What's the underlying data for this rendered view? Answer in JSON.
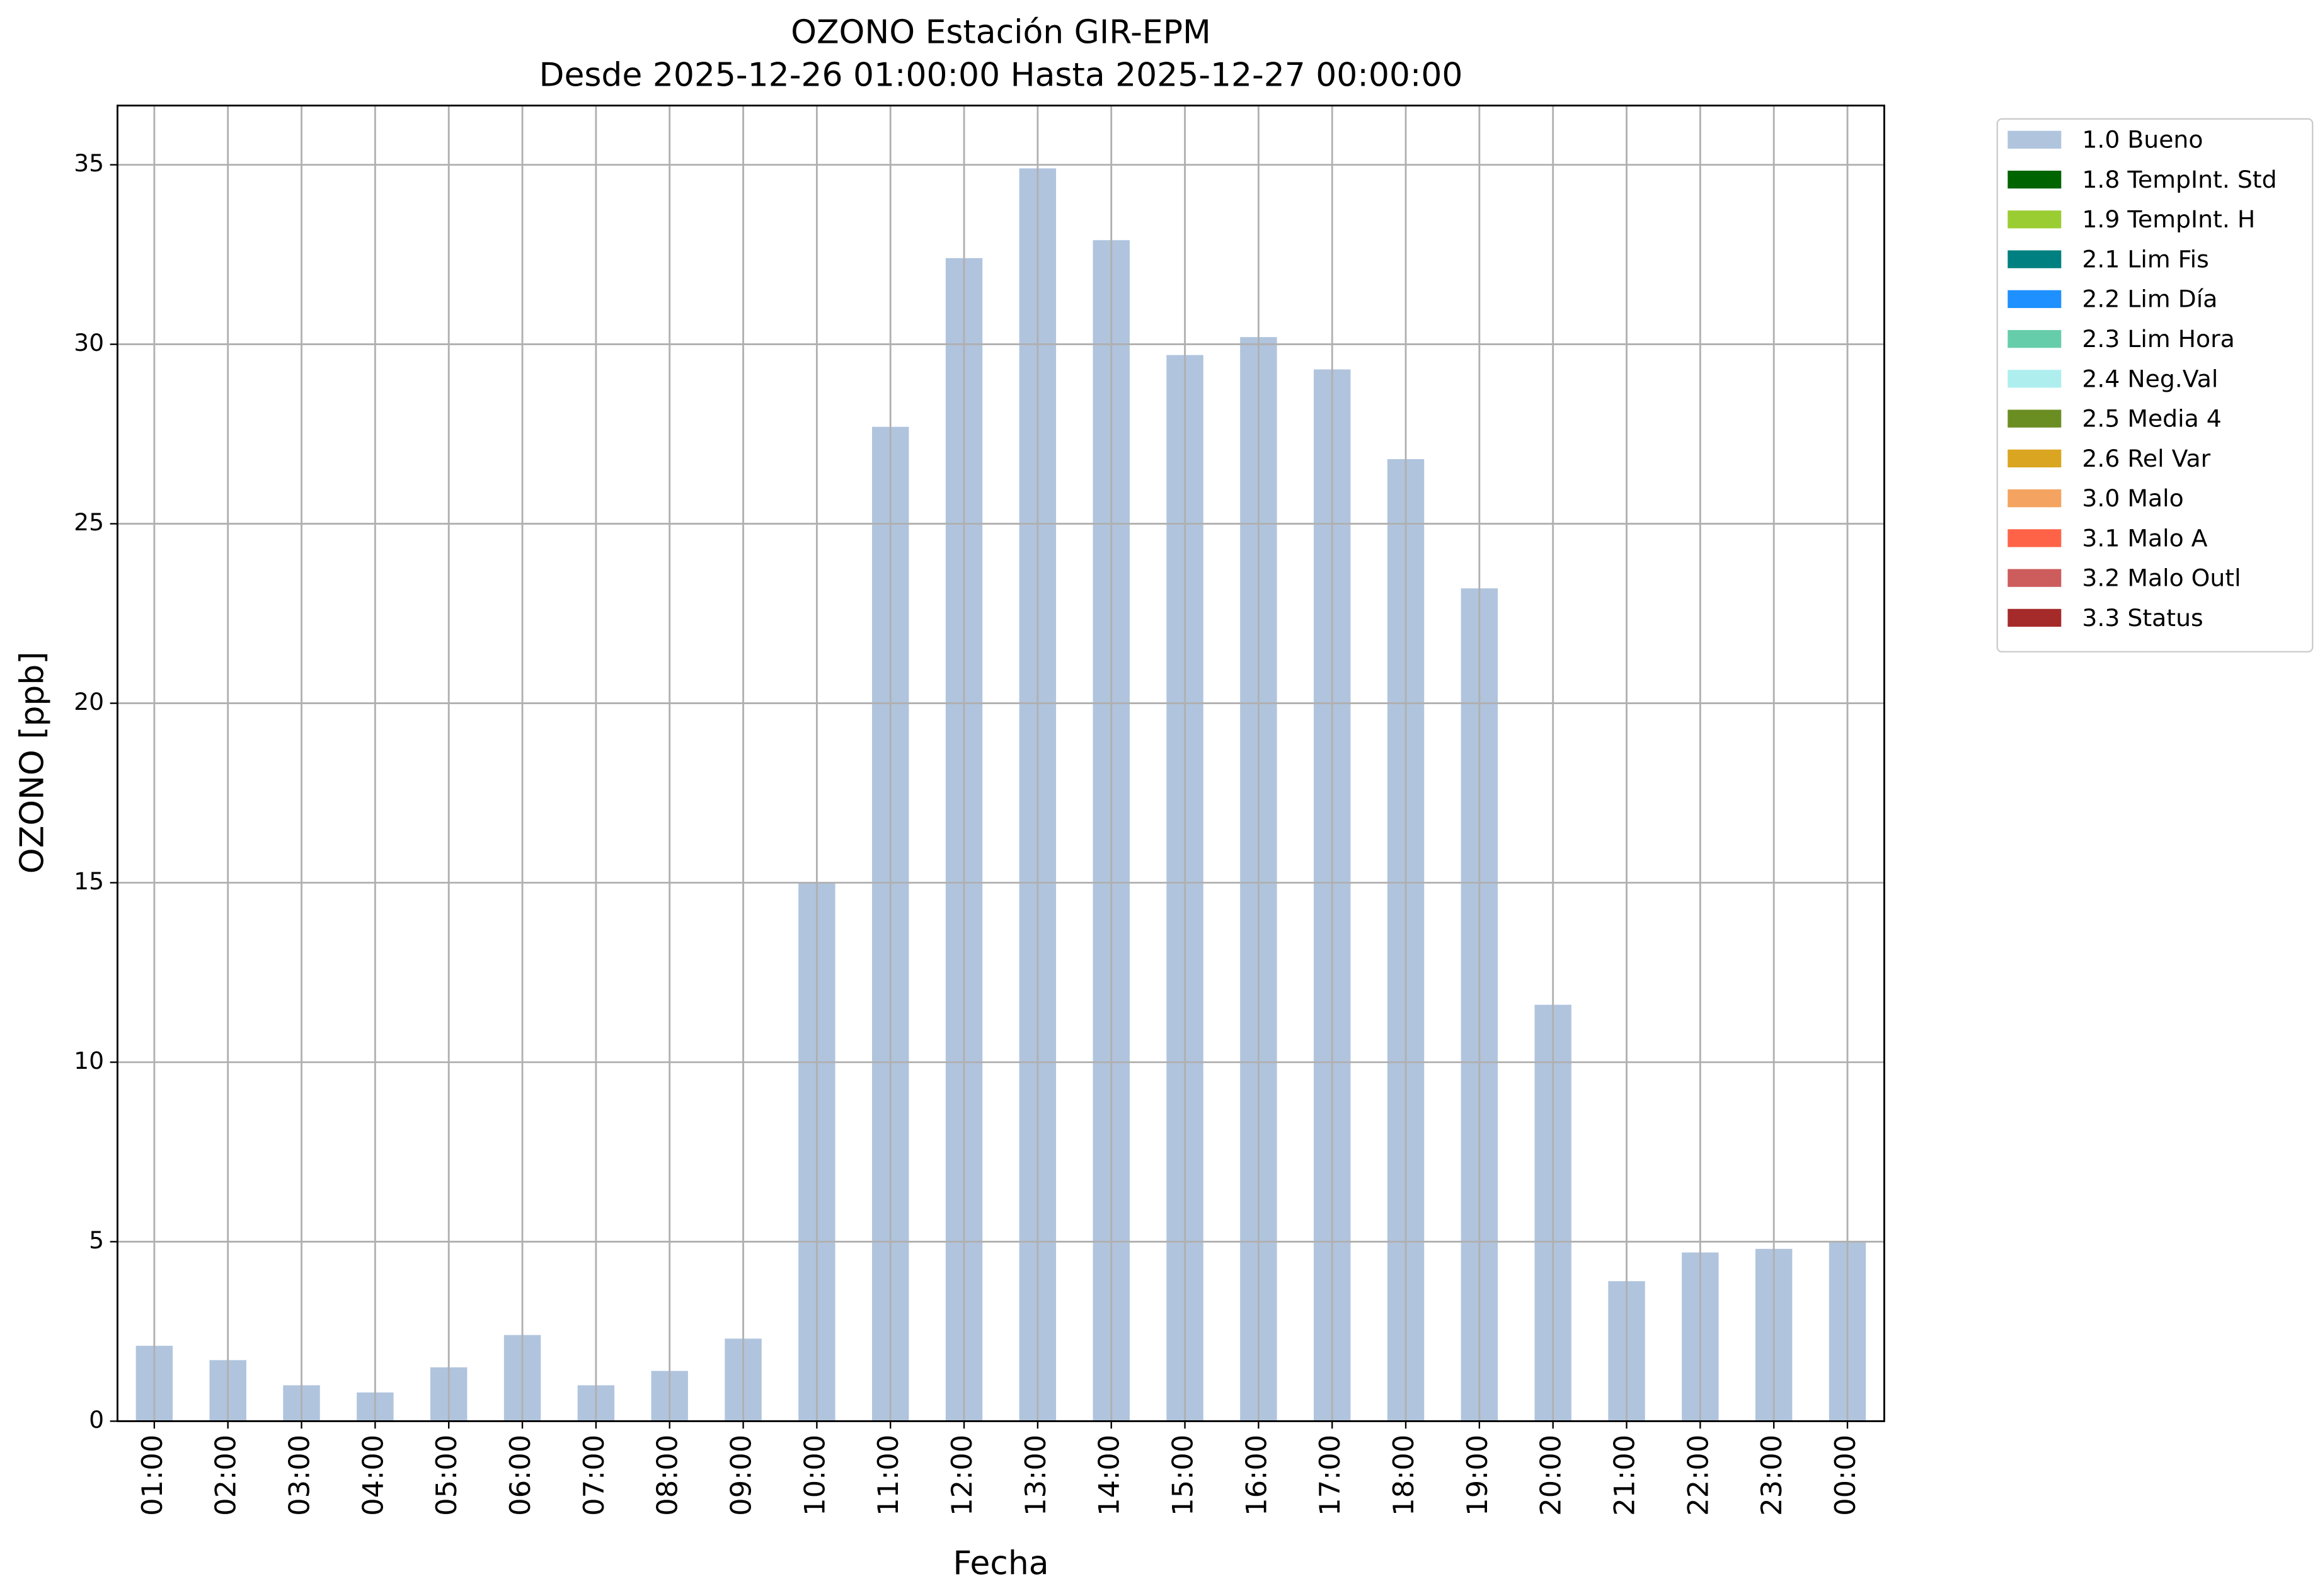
{
  "chart_data": {
    "type": "bar",
    "title": "OZONO Estación GIR-EPM",
    "subtitle": "Desde 2025-12-26 01:00:00 Hasta 2025-12-27 00:00:00",
    "x_label": "Fecha",
    "y_label": "OZONO [ppb]",
    "categories": [
      "01:00",
      "02:00",
      "03:00",
      "04:00",
      "05:00",
      "06:00",
      "07:00",
      "08:00",
      "09:00",
      "10:00",
      "11:00",
      "12:00",
      "13:00",
      "14:00",
      "15:00",
      "16:00",
      "17:00",
      "18:00",
      "19:00",
      "20:00",
      "21:00",
      "22:00",
      "23:00",
      "00:00"
    ],
    "series": [
      {
        "name": "1.0 Bueno",
        "color": "#b0c4de",
        "values": [
          2.1,
          1.7,
          1.0,
          0.8,
          1.5,
          2.4,
          1.0,
          1.4,
          2.3,
          15.0,
          27.7,
          32.4,
          34.9,
          32.9,
          29.7,
          30.2,
          29.3,
          26.8,
          23.2,
          11.6,
          3.9,
          4.7,
          4.8,
          5.0
        ]
      }
    ],
    "legend_entries": [
      {
        "name": "1.8 TempInt. Std",
        "color": "#006400"
      },
      {
        "name": "1.9 TempInt. H",
        "color": "#9acd32"
      },
      {
        "name": "2.1 Lim Fis",
        "color": "#008080"
      },
      {
        "name": "2.2 Lim Día",
        "color": "#1e90ff"
      },
      {
        "name": "2.3 Lim Hora",
        "color": "#66cdaa"
      },
      {
        "name": "2.4 Neg.Val",
        "color": "#afeeee"
      },
      {
        "name": "2.5 Media 4",
        "color": "#6b8e23"
      },
      {
        "name": "2.6 Rel Var",
        "color": "#daa520"
      },
      {
        "name": "3.0 Malo",
        "color": "#f4a460"
      },
      {
        "name": "3.1 Malo A",
        "color": "#ff6347"
      },
      {
        "name": "3.2 Malo Outl",
        "color": "#cd5c5c"
      },
      {
        "name": "3.3 Status",
        "color": "#a52a2a"
      }
    ],
    "ylim": [
      0,
      36.65
    ],
    "yticks": [
      0,
      5,
      10,
      15,
      20,
      25,
      30,
      35
    ],
    "grid": true,
    "legend_position": "outside-upper-right"
  }
}
